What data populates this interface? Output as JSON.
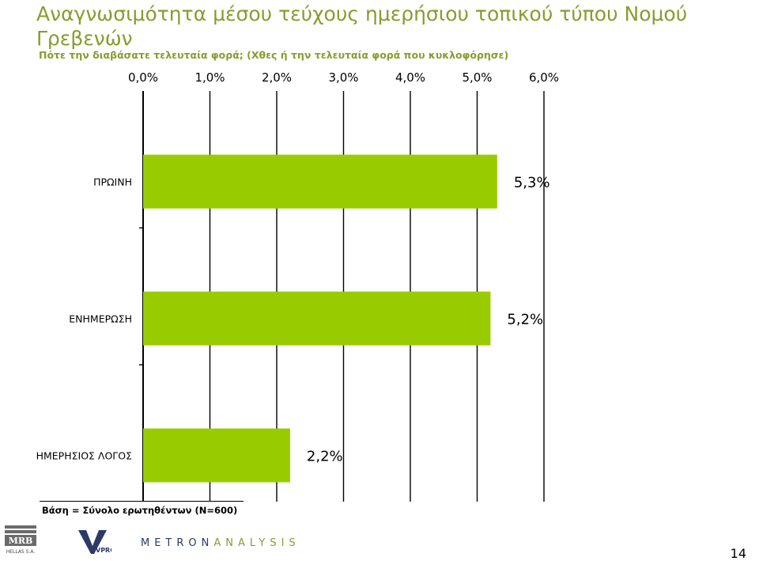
{
  "chart_data": {
    "type": "bar",
    "orientation": "horizontal",
    "title": "Αναγνωσιμότητα μέσου τεύχους ημερήσιου τοπικού τύπου Νομού Γρεβενών",
    "subtitle": "Πότε την διαβάσατε τελευταία φορά; (Χθες ή την τελευταία φορά που κυκλοφόρησε)",
    "categories": [
      "ΠΡΩΙΝΗ",
      "ΕΝΗΜΕΡΩΣΗ",
      "ΗΜΕΡΗΣΙΟΣ ΛΟΓΟΣ"
    ],
    "values": [
      5.3,
      5.2,
      2.2
    ],
    "data_labels": [
      "5,3%",
      "5,2%",
      "2,2%"
    ],
    "x_ticks": [
      0,
      1,
      2,
      3,
      4,
      5,
      6
    ],
    "x_tick_labels": [
      "0,0%",
      "1,0%",
      "2,0%",
      "3,0%",
      "4,0%",
      "5,0%",
      "6,0%"
    ],
    "xlim": [
      0,
      6
    ],
    "axis_position": "top",
    "grid": true,
    "legend": false,
    "bar_color": "#99cc00"
  },
  "footer": {
    "base_note": "Βάση = Σύνολο ερωτηθέντων (Ν=600)",
    "logo_mrb": "MRB",
    "logo_mrb_sub": "HELLAS S.A.",
    "logo_vprc": "VPRC",
    "logo_metron_a": "METRON",
    "logo_metron_b": "ANALYSIS",
    "page_number": "14"
  },
  "colors": {
    "title": "#8a9b2e",
    "bar": "#99cc00",
    "grid": "#000000"
  }
}
